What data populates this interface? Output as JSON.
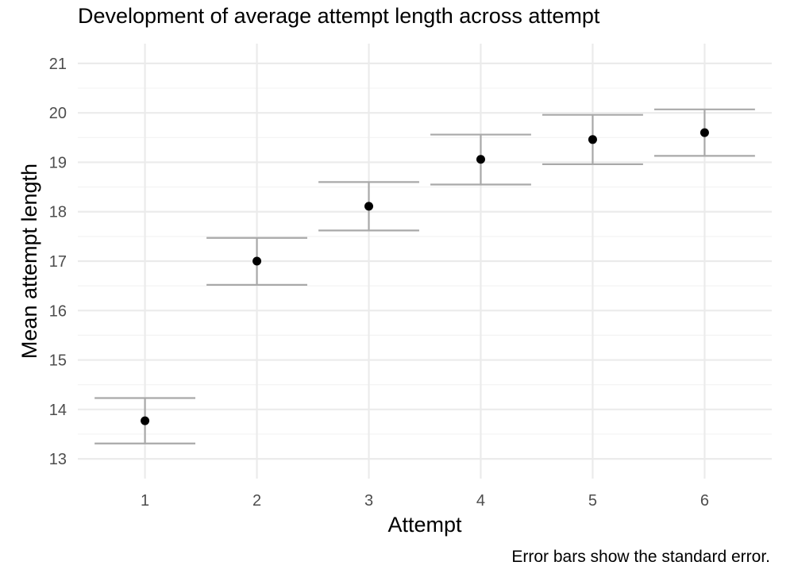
{
  "chart_data": {
    "type": "scatter",
    "title": "Development of average attempt length across attempt",
    "xlabel": "Attempt",
    "ylabel": "Mean attempt length",
    "caption": "Error bars show the standard error.",
    "x": [
      1,
      2,
      3,
      4,
      5,
      6
    ],
    "y": [
      13.77,
      17.0,
      18.11,
      19.06,
      19.46,
      19.6
    ],
    "error_low": [
      13.31,
      16.52,
      17.62,
      18.55,
      18.96,
      19.13
    ],
    "error_high": [
      14.23,
      17.47,
      18.6,
      19.56,
      19.96,
      20.07
    ],
    "xticks": [
      "1",
      "2",
      "3",
      "4",
      "5",
      "6"
    ],
    "yticks": [
      "13",
      "14",
      "15",
      "16",
      "17",
      "18",
      "19",
      "20",
      "21"
    ],
    "xlim": [
      0.4,
      6.6
    ],
    "ylim": [
      12.6,
      21.4
    ],
    "grid": true,
    "colors": {
      "point": "#000000",
      "errorbar": "#a9a9a9",
      "grid_major": "#ebebeb",
      "grid_minor": "#f3f3f3"
    }
  }
}
